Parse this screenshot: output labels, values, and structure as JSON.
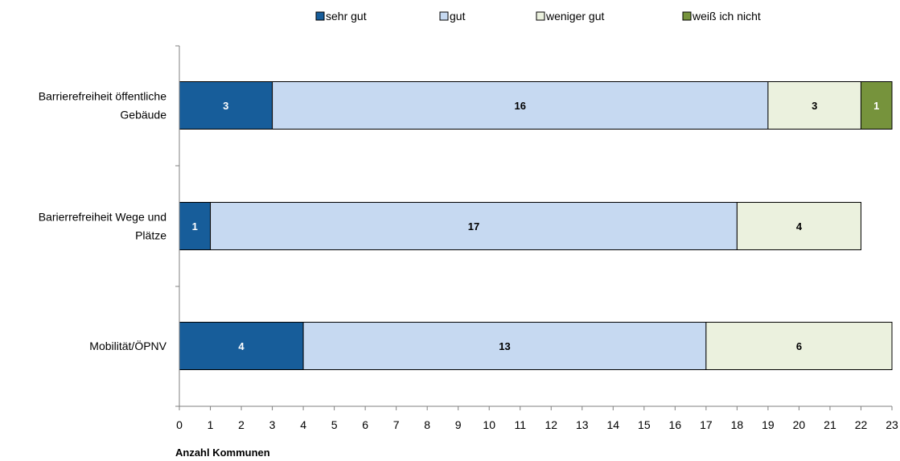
{
  "chart_data": {
    "type": "bar",
    "orientation": "horizontal",
    "stacked": true,
    "title": "",
    "xlabel": "Anzahl Kommunen",
    "ylabel": "",
    "xlim": [
      0,
      23
    ],
    "x_ticks": [
      0,
      1,
      2,
      3,
      4,
      5,
      6,
      7,
      8,
      9,
      10,
      11,
      12,
      13,
      14,
      15,
      16,
      17,
      18,
      19,
      20,
      21,
      22,
      23
    ],
    "grid": false,
    "legend_position": "top",
    "categories": [
      [
        "Barrierefreiheit öffentliche",
        "Gebäude"
      ],
      [
        "Barierrefreiheit Wege und",
        "Plätze"
      ],
      [
        "Mobilität/ÖPNV"
      ]
    ],
    "series": [
      {
        "name": "sehr gut",
        "color": "#175d9a",
        "label_color": "#ffffff",
        "values": [
          3,
          1,
          4
        ]
      },
      {
        "name": "gut",
        "color": "#c6d9f1",
        "label_color": "#000000",
        "values": [
          16,
          17,
          13
        ]
      },
      {
        "name": "weniger gut",
        "color": "#ebf1de",
        "label_color": "#000000",
        "values": [
          3,
          4,
          6
        ]
      },
      {
        "name": "weiß ich nicht",
        "color": "#76933c",
        "label_color": "#ffffff",
        "values": [
          1,
          0,
          0
        ]
      }
    ]
  }
}
